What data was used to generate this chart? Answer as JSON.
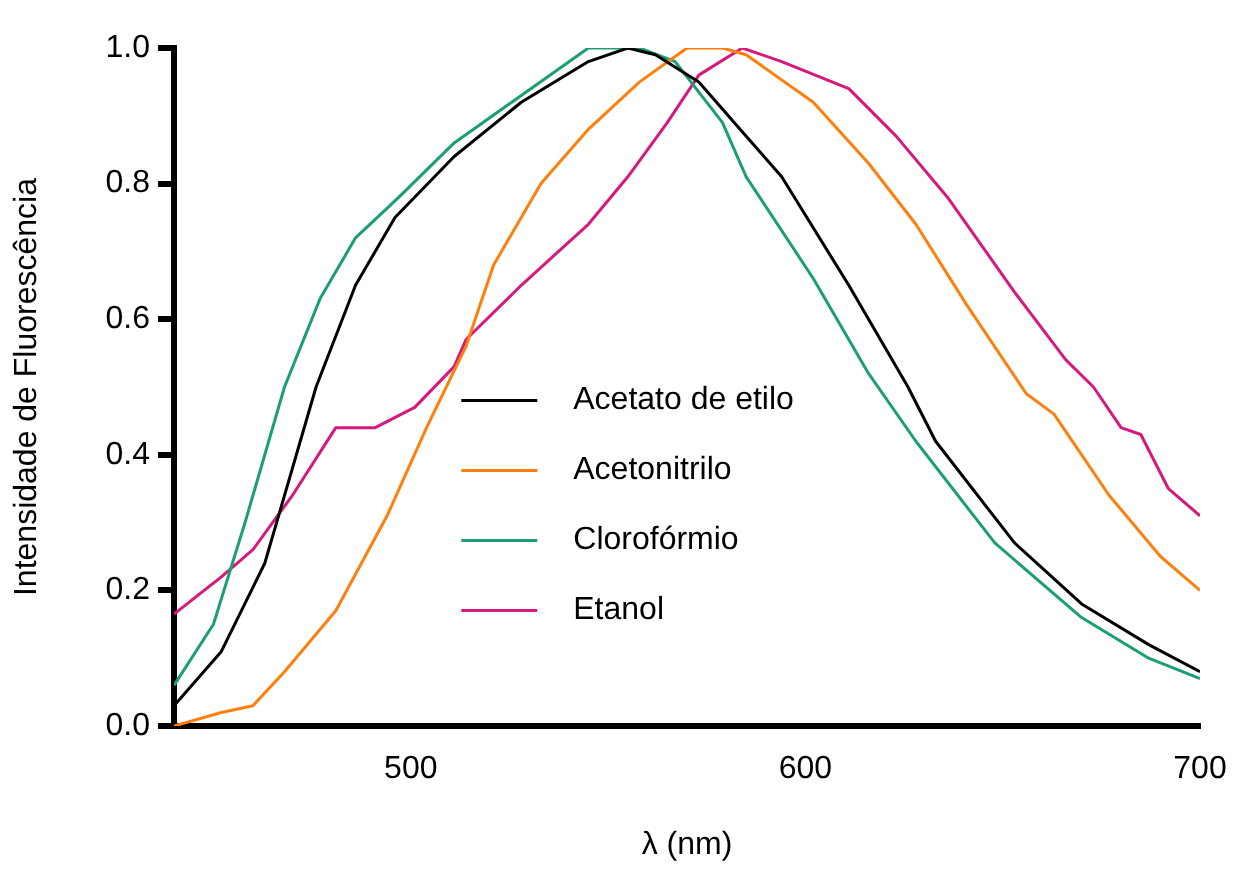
{
  "chart_data": {
    "type": "line",
    "xlabel": "λ (nm)",
    "ylabel": "Intensidade de Fluorescência",
    "xlim": [
      440,
      700
    ],
    "xticks": [
      500,
      600,
      700
    ],
    "ylim": [
      0,
      1.0
    ],
    "yticks": [
      {
        "value": 0,
        "label": "0.0"
      },
      {
        "value": 0.2,
        "label": "0.2"
      },
      {
        "value": 0.4,
        "label": "0.4"
      },
      {
        "value": 0.6,
        "label": "0.6"
      },
      {
        "value": 0.8,
        "label": "0.8"
      },
      {
        "value": 1.0,
        "label": "1.0"
      }
    ],
    "grid": false,
    "legend": "center",
    "marker": "none",
    "line_style": "solid",
    "series": [
      {
        "name": "Acetato de etilo",
        "color": "#000000",
        "x": [
          440,
          452,
          463,
          476,
          486,
          496,
          511,
          528,
          545,
          555,
          562,
          573,
          585,
          594,
          611,
          619,
          626,
          633,
          653,
          670,
          687,
          700
        ],
        "values": [
          0.03,
          0.11,
          0.24,
          0.5,
          0.65,
          0.75,
          0.84,
          0.92,
          0.98,
          1.0,
          0.99,
          0.95,
          0.87,
          0.81,
          0.65,
          0.57,
          0.5,
          0.42,
          0.27,
          0.18,
          0.12,
          0.08
        ]
      },
      {
        "name": "Acetonitrilo",
        "color": "#ff7f0e",
        "x": [
          440,
          452,
          460,
          468,
          481,
          494,
          504,
          514,
          521,
          533,
          545,
          558,
          570,
          579,
          585,
          602,
          616,
          628,
          641,
          656,
          663,
          677,
          690,
          700
        ],
        "values": [
          0.0,
          0.02,
          0.03,
          0.08,
          0.17,
          0.31,
          0.44,
          0.56,
          0.68,
          0.8,
          0.88,
          0.95,
          1.0,
          1.0,
          0.99,
          0.92,
          0.83,
          0.74,
          0.62,
          0.49,
          0.46,
          0.34,
          0.25,
          0.2
        ]
      },
      {
        "name": "Clorofórmio",
        "color": "#1b9e77",
        "x": [
          440,
          450,
          458,
          468,
          477,
          486,
          497,
          511,
          528,
          545,
          558,
          567,
          579,
          585,
          602,
          616,
          628,
          648,
          670,
          687,
          700
        ],
        "values": [
          0.06,
          0.15,
          0.3,
          0.5,
          0.63,
          0.72,
          0.78,
          0.86,
          0.93,
          1.0,
          1.0,
          0.98,
          0.89,
          0.81,
          0.66,
          0.52,
          0.42,
          0.27,
          0.16,
          0.1,
          0.07
        ]
      },
      {
        "name": "Etanol",
        "color": "#d6197c",
        "x": [
          440,
          452,
          460,
          470,
          481,
          491,
          501,
          511,
          514,
          528,
          545,
          555,
          565,
          573,
          584,
          594,
          611,
          623,
          636,
          653,
          666,
          673,
          680,
          685,
          692,
          700
        ],
        "values": [
          0.165,
          0.22,
          0.26,
          0.34,
          0.44,
          0.44,
          0.47,
          0.53,
          0.57,
          0.65,
          0.74,
          0.81,
          0.89,
          0.96,
          1.0,
          0.98,
          0.94,
          0.87,
          0.78,
          0.64,
          0.54,
          0.5,
          0.44,
          0.43,
          0.35,
          0.31
        ]
      }
    ]
  }
}
